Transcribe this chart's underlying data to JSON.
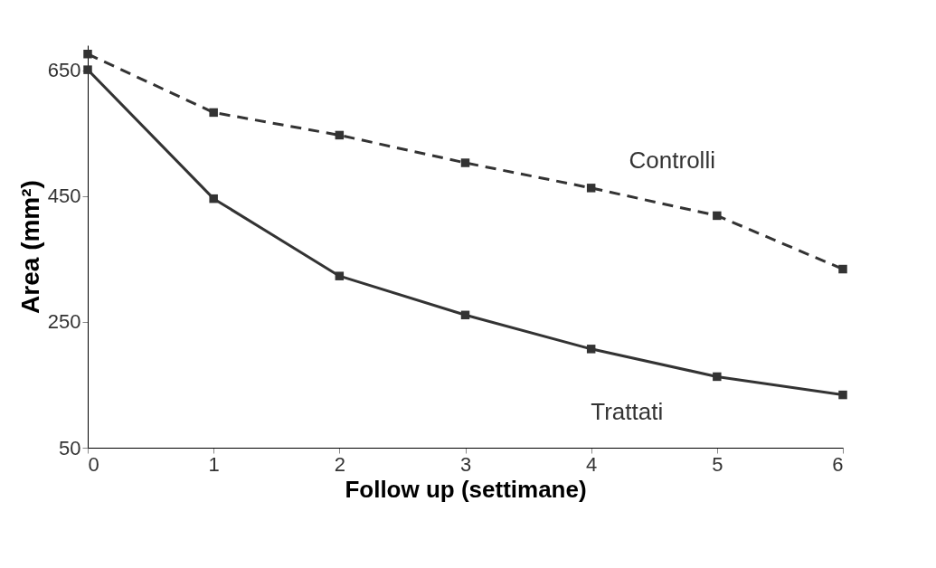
{
  "chart_data": {
    "type": "line",
    "xlabel": "Follow up (settimane)",
    "ylabel": "Area (mm²)",
    "x": [
      0,
      1,
      2,
      3,
      4,
      5,
      6
    ],
    "series": [
      {
        "name": "Controlli",
        "color": "#333333",
        "line_style": "dashed",
        "values": [
          676,
          583,
          547,
          503,
          463,
          419,
          334
        ]
      },
      {
        "name": "Trattati",
        "color": "#333333",
        "line_style": "solid",
        "values": [
          651,
          446,
          323,
          261,
          207,
          163,
          134
        ]
      }
    ],
    "xlim": [
      0,
      6
    ],
    "ylim": [
      50,
      690
    ],
    "xticks": [
      0,
      1,
      2,
      3,
      4,
      5,
      6
    ],
    "yticks": [
      50,
      250,
      450,
      650
    ],
    "marker": "square",
    "grid": false,
    "legend": false
  }
}
